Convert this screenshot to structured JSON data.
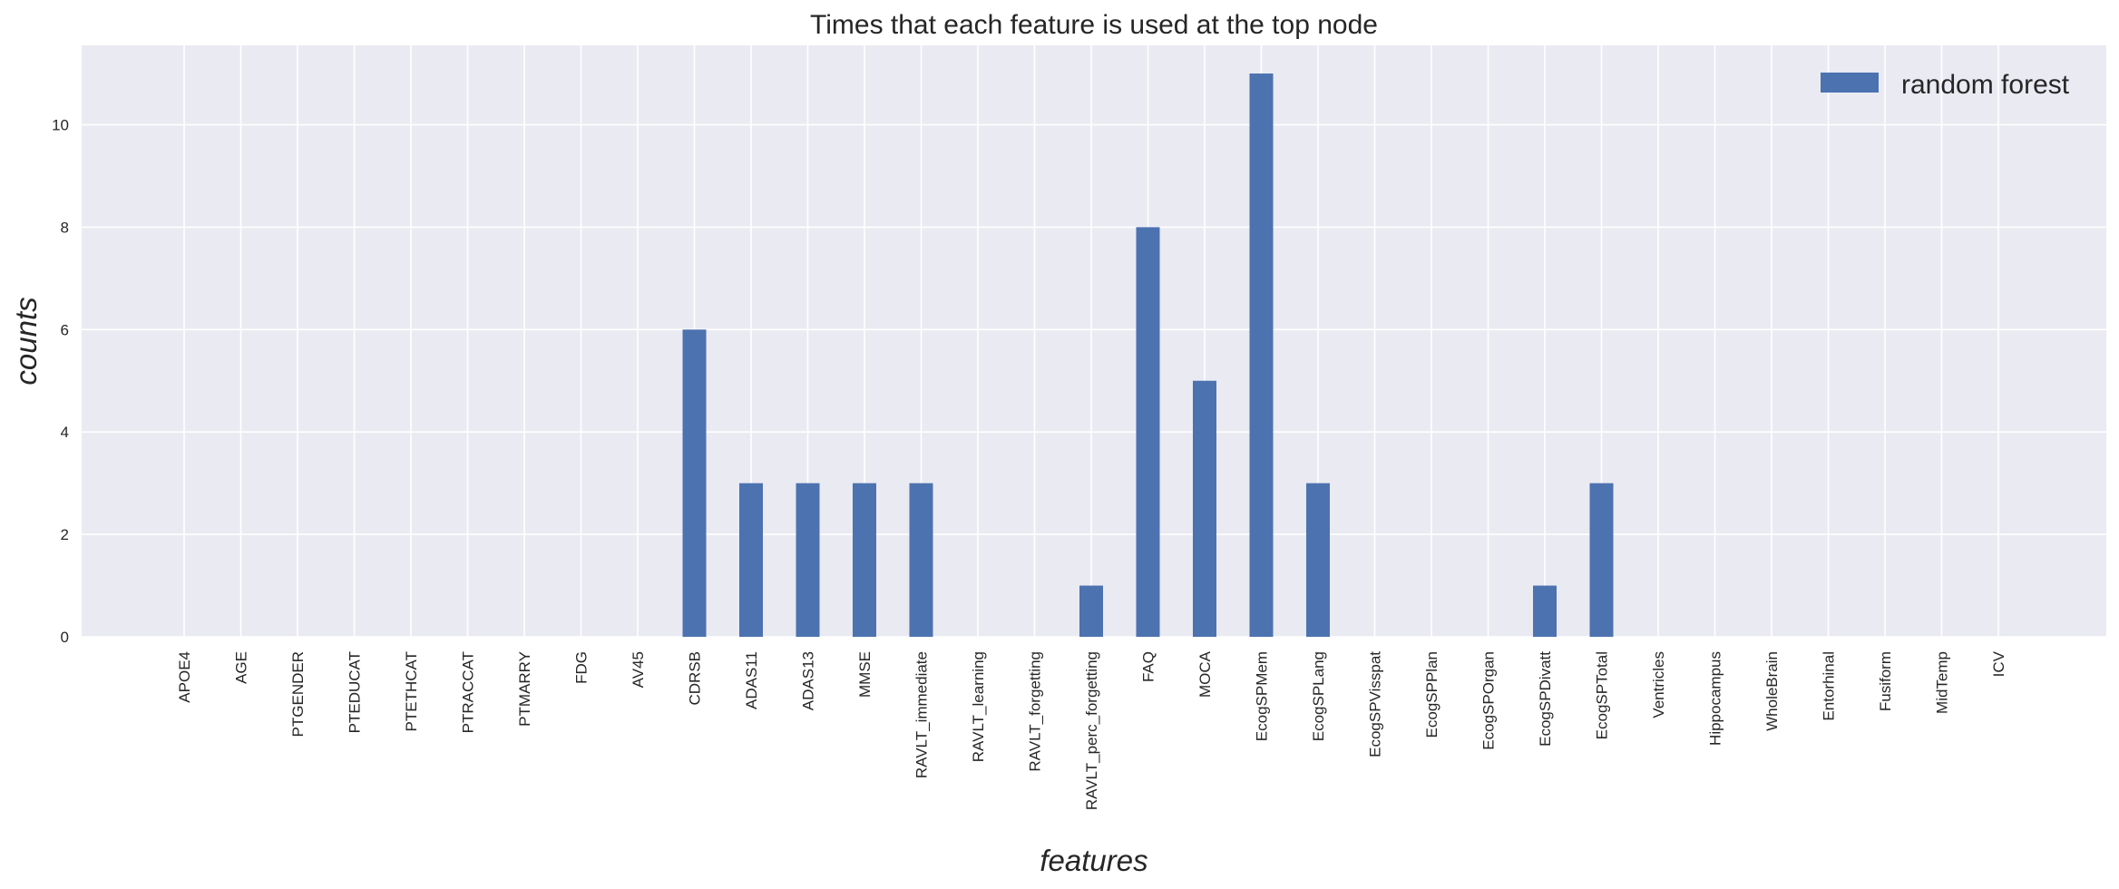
{
  "chart_data": {
    "type": "bar",
    "title": "Times that each feature is used at the top node",
    "xlabel": "features",
    "ylabel": "counts",
    "ylim": [
      0,
      11.55
    ],
    "yticks": [
      0,
      2,
      4,
      6,
      8,
      10
    ],
    "grid": true,
    "legend_position": "top-right",
    "categories": [
      "APOE4",
      "AGE",
      "PTGENDER",
      "PTEDUCAT",
      "PTETHCAT",
      "PTRACCAT",
      "PTMARRY",
      "FDG",
      "AV45",
      "CDRSB",
      "ADAS11",
      "ADAS13",
      "MMSE",
      "RAVLT_immediate",
      "RAVLT_learning",
      "RAVLT_forgetting",
      "RAVLT_perc_forgetting",
      "FAQ",
      "MOCA",
      "EcogSPMem",
      "EcogSPLang",
      "EcogSPVisspat",
      "EcogSPPlan",
      "EcogSPOrgan",
      "EcogSPDivatt",
      "EcogSPTotal",
      "Ventricles",
      "Hippocampus",
      "WholeBrain",
      "Entorhinal",
      "Fusiform",
      "MidTemp",
      "ICV"
    ],
    "series": [
      {
        "name": "random forest",
        "color": "#4C72B0",
        "values": [
          0,
          0,
          0,
          0,
          0,
          0,
          0,
          0,
          0,
          6,
          3,
          3,
          3,
          3,
          0,
          0,
          1,
          8,
          5,
          11,
          3,
          0,
          0,
          0,
          1,
          3,
          0,
          0,
          0,
          0,
          0,
          0,
          0
        ]
      }
    ]
  },
  "colors": {
    "plot_background": "#EAEAF2",
    "grid": "#FFFFFF",
    "text": "#262626"
  }
}
